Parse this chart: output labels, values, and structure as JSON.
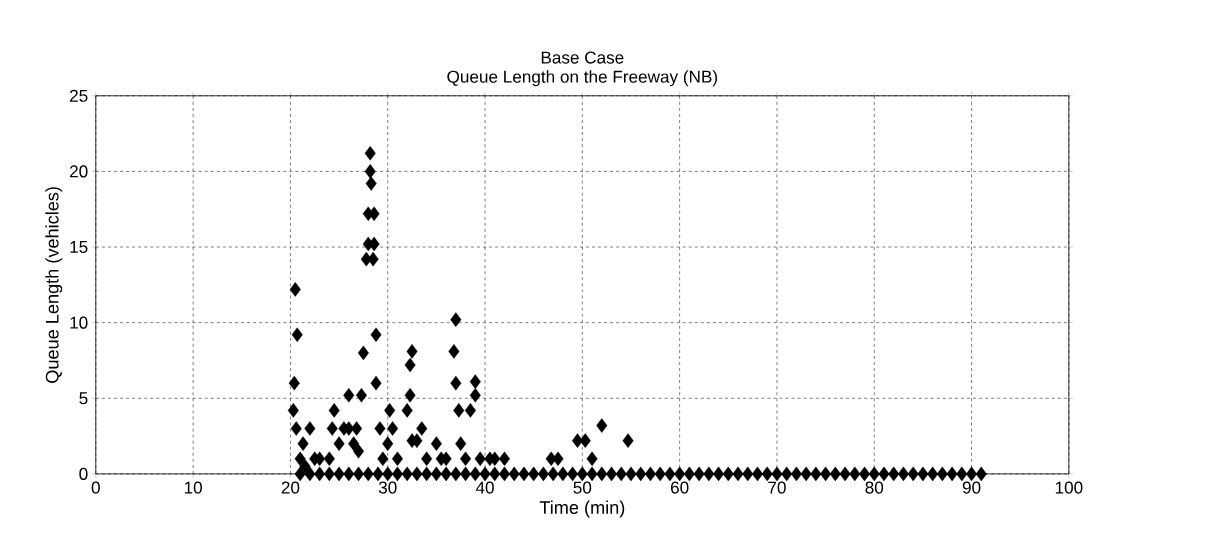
{
  "chart_data": {
    "type": "scatter",
    "title": "Base Case",
    "subtitle": "Queue Length on the Freeway (NB)",
    "xlabel": "Time (min)",
    "ylabel": "Queue Length (vehicles)",
    "xlim": [
      0,
      100
    ],
    "xticks": [
      0,
      10,
      20,
      30,
      40,
      50,
      60,
      70,
      80,
      90,
      100
    ],
    "ylim": [
      0,
      25
    ],
    "yticks": [
      0,
      5,
      10,
      15,
      20,
      25
    ],
    "grid": true,
    "marker": "diamond",
    "series": [
      {
        "color": "#000000",
        "x": [
          20.3,
          20.5,
          20.4,
          20.7,
          20.6,
          21,
          21.3,
          21.5,
          22,
          22.5,
          23,
          24,
          24.3,
          24.5,
          25,
          25.5,
          26,
          26,
          26.5,
          26.8,
          27,
          27.3,
          27.5,
          27.8,
          28,
          28,
          28.2,
          28.2,
          28.3,
          28.5,
          28.6,
          28.6,
          28.8,
          28.8,
          29.2,
          29.5,
          30,
          30.2,
          30.5,
          31,
          32,
          32.3,
          32.3,
          32.5,
          32.5,
          33,
          33.5,
          34,
          35,
          35.5,
          36,
          36.8,
          37,
          37,
          37.3,
          37.5,
          38,
          38.5,
          39,
          39,
          39.5,
          40.5,
          41,
          42,
          46.8,
          47.5,
          49.5,
          50.3,
          51,
          52,
          54.7,
          21,
          22,
          23,
          24,
          25,
          26,
          27,
          28,
          29,
          30,
          31,
          32,
          33,
          34,
          35,
          36,
          37,
          38,
          39,
          40,
          41,
          42,
          43,
          44,
          45,
          46,
          47,
          48,
          49,
          50,
          51,
          52,
          53,
          54,
          55,
          56,
          57,
          58,
          59,
          60,
          61,
          62,
          63,
          64,
          65,
          66,
          67,
          68,
          69,
          70,
          71,
          72,
          73,
          74,
          75,
          76,
          77,
          78,
          79,
          80,
          81,
          82,
          83,
          84,
          85,
          86,
          87,
          88,
          89,
          90,
          91
        ],
        "values": [
          4.2,
          12.2,
          6,
          9.2,
          3,
          1,
          2,
          0.5,
          3,
          1,
          1,
          1,
          3,
          4.2,
          2,
          3,
          5.2,
          3,
          2,
          3,
          1.5,
          5.2,
          8,
          14.2,
          15.2,
          17.2,
          20,
          21.2,
          19.2,
          14.2,
          15.2,
          17.2,
          9.2,
          6,
          3,
          1,
          2,
          4.2,
          3,
          1,
          4.2,
          5.2,
          7.2,
          8.1,
          2.2,
          2.2,
          3,
          1,
          2,
          1,
          1,
          8.1,
          10.2,
          6,
          4.2,
          2,
          1,
          4.2,
          5.2,
          6.1,
          1,
          1,
          1,
          1,
          1,
          1,
          2.2,
          2.2,
          1,
          3.2,
          2.2,
          0,
          0,
          0,
          0,
          0,
          0,
          0,
          0,
          0,
          0,
          0,
          0,
          0,
          0,
          0,
          0,
          0,
          0,
          0,
          0,
          0,
          0,
          0,
          0,
          0,
          0,
          0,
          0,
          0,
          0,
          0,
          0,
          0,
          0,
          0,
          0,
          0,
          0,
          0,
          0,
          0,
          0,
          0,
          0,
          0,
          0,
          0,
          0,
          0,
          0,
          0,
          0,
          0,
          0,
          0,
          0,
          0,
          0,
          0,
          0,
          0,
          0,
          0,
          0,
          0,
          0,
          0,
          0,
          0,
          0,
          0
        ]
      }
    ]
  }
}
